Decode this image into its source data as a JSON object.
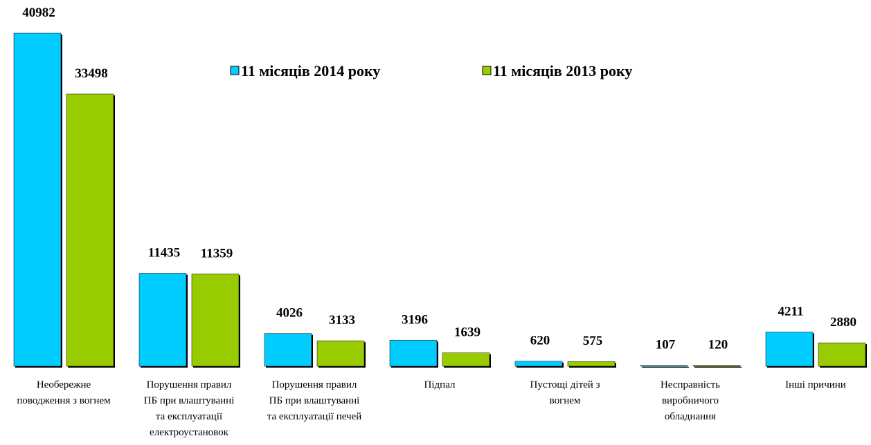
{
  "chart_data": {
    "type": "bar",
    "categories": [
      "Необережне\nповодження з вогнем",
      "Порушення правил\nПБ при влаштуванні\nта експлуатації\nелектроустановок",
      "Порушення правил\nПБ при влаштуванні\nта експлуатації печей",
      "Підпал",
      "Пустощі дітей з\nвогнем",
      "Несправність\nвиробничого\nобладнання",
      "Інші причини"
    ],
    "series": [
      {
        "name": "11 місяців 2014 року",
        "color": "#00ccff",
        "values": [
          40982,
          11435,
          4026,
          3196,
          620,
          107,
          4211
        ]
      },
      {
        "name": "11 місяців 2013 року",
        "color": "#99cc00",
        "values": [
          33498,
          11359,
          3133,
          1639,
          575,
          120,
          2880
        ]
      }
    ]
  }
}
